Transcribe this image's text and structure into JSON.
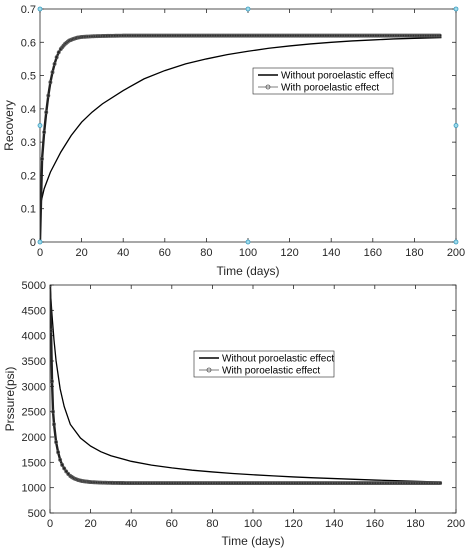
{
  "chart_data": [
    {
      "type": "line",
      "xlabel": "Time (days)",
      "ylabel": "Recovery",
      "xlim": [
        0,
        200
      ],
      "ylim": [
        0,
        0.7
      ],
      "xticks": [
        "0",
        "20",
        "40",
        "60",
        "80",
        "100",
        "120",
        "140",
        "160",
        "180",
        "200"
      ],
      "yticks": [
        "0",
        "0.1",
        "0.2",
        "0.3",
        "0.4",
        "0.5",
        "0.6",
        "0.7"
      ],
      "legend_position": "center-right",
      "grid": false,
      "series": [
        {
          "name": "Without poroelastic effect",
          "marker": "none",
          "color": "#000000",
          "x": [
            0,
            0.5,
            2,
            5,
            10,
            15,
            20,
            25,
            30,
            40,
            50,
            60,
            70,
            80,
            90,
            100,
            110,
            120,
            130,
            140,
            150,
            160,
            170,
            180,
            193
          ],
          "y": [
            0,
            0.12,
            0.16,
            0.21,
            0.27,
            0.32,
            0.36,
            0.39,
            0.415,
            0.455,
            0.49,
            0.515,
            0.535,
            0.55,
            0.563,
            0.573,
            0.582,
            0.589,
            0.595,
            0.6,
            0.604,
            0.607,
            0.61,
            0.612,
            0.614
          ]
        },
        {
          "name": "With poroelastic effect",
          "marker": "circle",
          "color": "#555555",
          "x": [
            0,
            1,
            2,
            3,
            4,
            5,
            6,
            7,
            8,
            9,
            10,
            12,
            14,
            16,
            18,
            20,
            25,
            30,
            40,
            60,
            80,
            100,
            120,
            140,
            160,
            180,
            193
          ],
          "y": [
            0,
            0.25,
            0.33,
            0.39,
            0.44,
            0.48,
            0.51,
            0.535,
            0.555,
            0.57,
            0.58,
            0.595,
            0.605,
            0.61,
            0.614,
            0.616,
            0.618,
            0.619,
            0.62,
            0.62,
            0.62,
            0.62,
            0.62,
            0.62,
            0.62,
            0.62,
            0.62
          ]
        }
      ],
      "annotations": [
        {
          "label": "marker",
          "x": 0,
          "y": 0.7
        },
        {
          "label": "marker",
          "x": 100,
          "y": 0.7
        },
        {
          "label": "marker",
          "x": 200,
          "y": 0.7
        },
        {
          "label": "marker",
          "x": 0,
          "y": 0.35
        },
        {
          "label": "marker",
          "x": 200,
          "y": 0.35
        },
        {
          "label": "marker",
          "x": 0,
          "y": 0
        },
        {
          "label": "marker",
          "x": 100,
          "y": 0
        },
        {
          "label": "marker",
          "x": 200,
          "y": 0
        }
      ]
    },
    {
      "type": "line",
      "xlabel": "Time (days)",
      "ylabel": "Prssure(psi)",
      "xlim": [
        0,
        200
      ],
      "ylim": [
        500,
        5000
      ],
      "xticks": [
        "0",
        "20",
        "40",
        "60",
        "80",
        "100",
        "120",
        "140",
        "160",
        "180",
        "200"
      ],
      "yticks": [
        "500",
        "1000",
        "1500",
        "2000",
        "2500",
        "3000",
        "3500",
        "4000",
        "4500",
        "5000"
      ],
      "legend_position": "center",
      "grid": false,
      "series": [
        {
          "name": "Without poroelastic effect",
          "marker": "none",
          "color": "#000000",
          "x": [
            0,
            1,
            2,
            3,
            5,
            7,
            10,
            15,
            20,
            25,
            30,
            40,
            50,
            60,
            70,
            80,
            90,
            100,
            110,
            120,
            130,
            140,
            150,
            160,
            170,
            180,
            193
          ],
          "y": [
            5000,
            4400,
            3900,
            3500,
            2950,
            2600,
            2250,
            1980,
            1820,
            1710,
            1630,
            1520,
            1445,
            1390,
            1345,
            1310,
            1280,
            1255,
            1232,
            1212,
            1195,
            1180,
            1165,
            1150,
            1138,
            1125,
            1110
          ]
        },
        {
          "name": "With poroelastic effect",
          "marker": "circle",
          "color": "#555555",
          "x": [
            0,
            0.5,
            1,
            1.5,
            2,
            3,
            4,
            5,
            6,
            7,
            8,
            9,
            10,
            12,
            14,
            16,
            18,
            20,
            25,
            30,
            40,
            60,
            80,
            100,
            120,
            140,
            160,
            180,
            193
          ],
          "y": [
            5000,
            4100,
            3100,
            2500,
            2250,
            1900,
            1700,
            1550,
            1450,
            1380,
            1320,
            1270,
            1230,
            1180,
            1150,
            1130,
            1120,
            1110,
            1100,
            1095,
            1090,
            1090,
            1090,
            1090,
            1090,
            1090,
            1090,
            1090,
            1090
          ]
        }
      ]
    }
  ]
}
